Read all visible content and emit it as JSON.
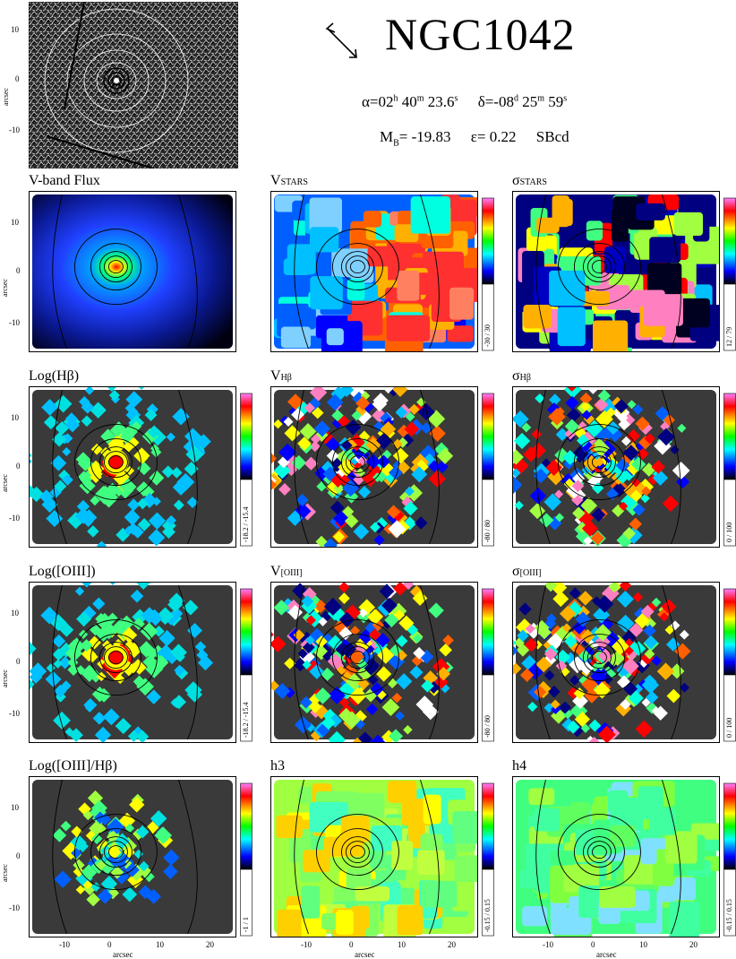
{
  "galaxy": {
    "name": "NGC1042",
    "ra_label": "α=02",
    "ra_h": "h",
    "ra_rest": " 40",
    "ra_m": "m",
    "ra_s": " 23.6",
    "ra_sec": "s",
    "dec_label": "δ=-08",
    "dec_d": "d",
    "dec_rest": " 25",
    "dec_m": "m",
    "dec_s": " 59",
    "dec_sec": "s",
    "mag_label": "M",
    "mag_sub": "B",
    "mag_value": "= -19.83",
    "ellip": "ε= 0.22",
    "type": "SBcd"
  },
  "axes": {
    "unit": "arcsec",
    "y_ticks": [
      "10",
      "0",
      "-10"
    ],
    "x_ticks": [
      "-10",
      "0",
      "10",
      "20"
    ]
  },
  "panels": [
    {
      "id": "vband",
      "label": "V-band Flux",
      "label_sc": "",
      "scale": "",
      "kind": "flux"
    },
    {
      "id": "vstars",
      "label": "V",
      "label_sc": "STARS",
      "scale": "-30 / 30",
      "kind": "vel"
    },
    {
      "id": "sstars",
      "label": "σ",
      "label_sc": "STARS",
      "scale": "12 / 79",
      "kind": "disp"
    },
    {
      "id": "loghb",
      "label": "Log(Hβ)",
      "label_sc": "",
      "scale": "-18.2 / -15.4",
      "kind": "gas_flux"
    },
    {
      "id": "vhb",
      "label": "V",
      "label_sc": "Hβ",
      "scale": "-80 / 80",
      "kind": "gas_vel"
    },
    {
      "id": "shb",
      "label": "σ",
      "label_sc": "Hβ",
      "scale": "0 / 100",
      "kind": "gas_disp"
    },
    {
      "id": "logoiii",
      "label": "Log([OIII])",
      "label_sc": "",
      "scale": "-18.2 / -15.4",
      "kind": "gas_flux2"
    },
    {
      "id": "voiii",
      "label": "V",
      "label_sc": "[OIII]",
      "scale": "-80 / 80",
      "kind": "gas_vel2"
    },
    {
      "id": "soiii",
      "label": "σ",
      "label_sc": "[OIII]",
      "scale": "0 / 100",
      "kind": "gas_disp2"
    },
    {
      "id": "ratio",
      "label": "Log([OIII]/Hβ)",
      "label_sc": "",
      "scale": "-1 / 1",
      "kind": "ratio"
    },
    {
      "id": "h3",
      "label": "h3",
      "label_sc": "",
      "scale": "-0.15 / 0.15",
      "kind": "h3"
    },
    {
      "id": "h4",
      "label": "h4",
      "label_sc": "",
      "scale": "-0.15 / 0.15",
      "kind": "h4"
    }
  ]
}
